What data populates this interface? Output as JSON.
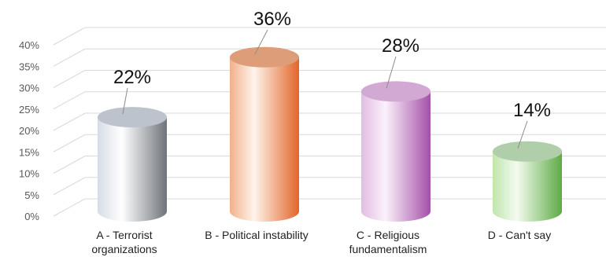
{
  "chart_data": {
    "type": "bar",
    "style": "3d-cylinder",
    "categories": [
      [
        "A - Terrorist",
        "organizations"
      ],
      [
        "B - Political instability"
      ],
      [
        "C - Religious",
        "fundamentalism"
      ],
      [
        "D - Can't say"
      ]
    ],
    "values": [
      22,
      36,
      28,
      14
    ],
    "value_labels": [
      "22%",
      "36%",
      "28%",
      "14%"
    ],
    "ylim": [
      0,
      40
    ],
    "yticks": [
      "0%",
      "5%",
      "10%",
      "15%",
      "20%",
      "25%",
      "30%",
      "35%",
      "40%"
    ],
    "ytick_values": [
      0,
      5,
      10,
      15,
      20,
      25,
      30,
      35,
      40
    ],
    "grid": true,
    "legend": "none",
    "bar_colors": [
      {
        "light": "#ffffff",
        "mid": "#d6dce6",
        "dark": "#6f747a",
        "top": "#bcc3cc"
      },
      {
        "light": "#fff4ec",
        "mid": "#f2b08a",
        "dark": "#e2662a",
        "top": "#dd9d78"
      },
      {
        "light": "#fbf1fb",
        "mid": "#e2bde2",
        "dark": "#a450a8",
        "top": "#d2a9d3"
      },
      {
        "light": "#f4fbf0",
        "mid": "#bfe6ad",
        "dark": "#5dab45",
        "top": "#b1ceab"
      }
    ],
    "grid_color": "#d9d9d9"
  }
}
